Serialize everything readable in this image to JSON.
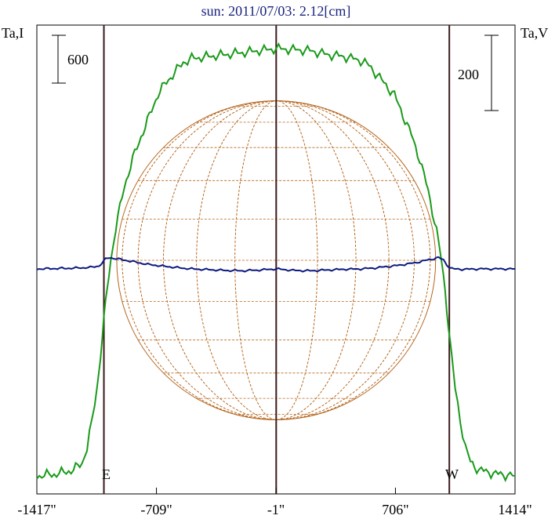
{
  "chart_data": {
    "type": "line",
    "title": "sun: 2011/07/03: 2.12[cm]",
    "left_axis_label": "Ta,I",
    "right_axis_label": "Ta,V",
    "scale_bar_left": "600",
    "scale_bar_right": "200",
    "x_tick_labels": [
      "-1417\"",
      "-709\"",
      "-1\"",
      "706\"",
      "1414\""
    ],
    "x_ticks_arcsec": [
      -1417,
      -709,
      -1,
      706,
      1414
    ],
    "xlim": [
      -1417,
      1414
    ],
    "limb_markers": {
      "east_label": "E",
      "west_label": "W",
      "east_arcsec": -1020,
      "center_arcsec": 0,
      "west_arcsec": 1025
    },
    "solar_disk": {
      "radius_arcsec": 944,
      "grid": "heliographic"
    },
    "series": [
      {
        "id": "I",
        "color": "#1a9a1a",
        "axis": "left",
        "x": [
          -1417,
          -1300,
          -1200,
          -1150,
          -1120,
          -1090,
          -1060,
          -1040,
          -1020,
          -1000,
          -980,
          -950,
          -900,
          -850,
          -800,
          -750,
          -700,
          -650,
          -600,
          -550,
          -500,
          -400,
          -300,
          -200,
          -100,
          0,
          100,
          200,
          300,
          400,
          500,
          550,
          600,
          650,
          700,
          750,
          800,
          850,
          900,
          950,
          980,
          1000,
          1020,
          1040,
          1060,
          1090,
          1120,
          1150,
          1200,
          1300,
          1414
        ],
        "values": [
          0,
          20,
          60,
          130,
          280,
          560,
          900,
          1220,
          1570,
          1900,
          2180,
          2500,
          2920,
          3200,
          3430,
          3640,
          3860,
          3980,
          4080,
          4180,
          4220,
          4240,
          4260,
          4280,
          4300,
          4320,
          4310,
          4300,
          4260,
          4240,
          4200,
          4150,
          4050,
          3950,
          3850,
          3650,
          3450,
          3200,
          2880,
          2480,
          2150,
          1880,
          1530,
          1180,
          880,
          560,
          290,
          140,
          60,
          20,
          0
        ]
      },
      {
        "id": "V",
        "color": "#0d1a80",
        "axis": "right",
        "x": [
          -1417,
          -1200,
          -1100,
          -1050,
          -1030,
          -1010,
          -990,
          -960,
          -920,
          -880,
          -820,
          -760,
          -700,
          -600,
          -500,
          -400,
          -300,
          -200,
          -100,
          0,
          100,
          200,
          300,
          400,
          500,
          600,
          650,
          700,
          760,
          820,
          880,
          920,
          960,
          990,
          1010,
          1030,
          1050,
          1100,
          1200,
          1414
        ],
        "values": [
          0,
          2,
          4,
          8,
          16,
          26,
          30,
          28,
          25,
          22,
          17,
          12,
          9,
          4,
          0,
          -2,
          -4,
          -5,
          -3,
          0,
          -4,
          -5,
          -3,
          -1,
          0,
          3,
          6,
          8,
          12,
          16,
          22,
          26,
          30,
          24,
          12,
          2,
          0,
          -1,
          0,
          0
        ]
      }
    ]
  }
}
